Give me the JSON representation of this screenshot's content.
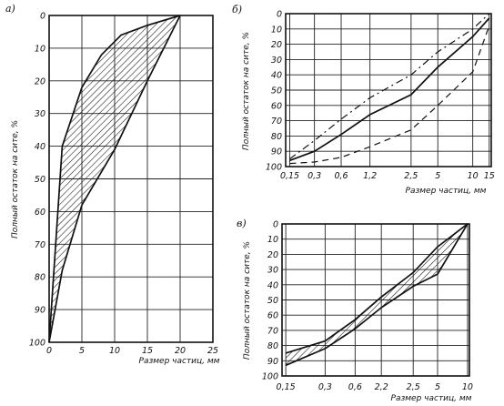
{
  "chart_data": [
    {
      "panel": "а)",
      "type": "area",
      "ylabel": "Полный остаток на сите, %",
      "xlabel": "Размер частиц, мм",
      "x_ticks": [
        "0",
        "5",
        "10",
        "15",
        "20",
        "25"
      ],
      "y_ticks": [
        "0",
        "10",
        "20",
        "30",
        "40",
        "50",
        "60",
        "70",
        "80",
        "90",
        "100"
      ],
      "xlim": [
        0,
        25
      ],
      "ylim": [
        0,
        100
      ],
      "y_inverted": true,
      "grid": true,
      "hatched_band": true,
      "series": [
        {
          "x": [
            0,
            2,
            5,
            8,
            11,
            15,
            20
          ],
          "y": [
            100,
            40,
            22,
            12,
            6,
            3,
            0
          ]
        },
        {
          "x": [
            0,
            2,
            5,
            10,
            15,
            20
          ],
          "y": [
            100,
            78,
            58,
            41,
            20,
            0
          ]
        }
      ]
    },
    {
      "panel": "б)",
      "type": "line",
      "ylabel": "Полный остаток на сите, %",
      "xlabel": "Размер частиц, мм",
      "x_ticks": [
        "0,15",
        "0,3",
        "0,6",
        "1,2",
        "2,5",
        "5",
        "10",
        "15"
      ],
      "y_ticks": [
        "0",
        "10",
        "20",
        "30",
        "40",
        "50",
        "60",
        "70",
        "80",
        "90",
        "100"
      ],
      "ylim": [
        0,
        100
      ],
      "y_inverted": true,
      "grid": true,
      "series": [
        {
          "line_style": "dash-dot",
          "x": [
            "0,15",
            "0,3",
            "0,6",
            "1,2",
            "2,5",
            "5",
            "10",
            "15"
          ],
          "y": [
            95,
            83,
            69,
            55,
            40,
            25,
            10,
            0
          ]
        },
        {
          "line_style": "solid",
          "x": [
            "0,15",
            "0,3",
            "0,6",
            "1,2",
            "2,5",
            "5",
            "10",
            "15"
          ],
          "y": [
            96,
            90,
            79,
            66,
            53,
            35,
            15,
            3
          ]
        },
        {
          "line_style": "dashed",
          "x": [
            "0,15",
            "0,3",
            "0,6",
            "1,2",
            "2,5",
            "5",
            "10",
            "15"
          ],
          "y": [
            98,
            97,
            94,
            87,
            76,
            60,
            38,
            8
          ]
        }
      ]
    },
    {
      "panel": "в)",
      "type": "area",
      "ylabel": "Полный остаток на сите, %",
      "xlabel": "Размер частиц, мм",
      "x_ticks": [
        "0,15",
        "0,3",
        "0,6",
        "2,2",
        "2,5",
        "5",
        "10"
      ],
      "y_ticks": [
        "0",
        "10",
        "20",
        "30",
        "40",
        "50",
        "60",
        "70",
        "80",
        "90",
        "100"
      ],
      "ylim": [
        0,
        100
      ],
      "y_inverted": true,
      "grid": true,
      "hatched_band": true,
      "series": [
        {
          "x": [
            "0,15",
            "0,3",
            "0,6",
            "2,2",
            "2,5",
            "5",
            "10"
          ],
          "y": [
            85,
            77,
            63,
            48,
            32,
            15,
            0
          ]
        },
        {
          "x": [
            "0,15",
            "0,3",
            "0,6",
            "2,2",
            "2,5",
            "5",
            "10"
          ],
          "y": [
            93,
            82,
            69,
            55,
            41,
            33,
            0
          ]
        }
      ]
    }
  ]
}
